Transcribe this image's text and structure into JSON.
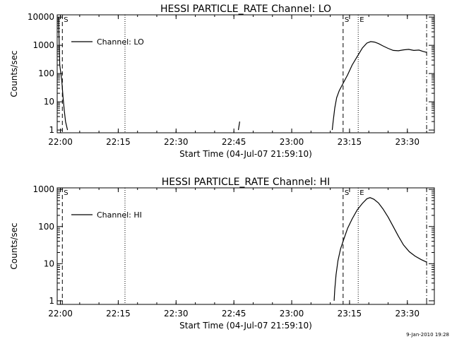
{
  "timestamp": "9-Jan-2010 19:28",
  "chart_data": [
    {
      "type": "line",
      "title": "HESSI PARTICLE_RATE Channel: LO",
      "xlabel": "Start Time (04-Jul-07 21:59:10)",
      "ylabel": "Counts/sec",
      "y_scale": "log",
      "xlim": [
        "21:59:10",
        "23:37:00"
      ],
      "ylim": [
        0.8,
        12000
      ],
      "x_ticks": [
        "22:00",
        "22:15",
        "22:30",
        "22:45",
        "23:00",
        "23:15",
        "23:30"
      ],
      "y_ticks": [
        "1",
        "10",
        "100",
        "1000",
        "10000"
      ],
      "legend": {
        "position": "top-left",
        "entries": [
          "Channel: LO"
        ]
      },
      "markers": [
        {
          "label": "S",
          "time": "22:00:30",
          "style": "dashed"
        },
        {
          "label": "",
          "time": "22:16:45",
          "style": "dotted"
        },
        {
          "label": "S",
          "time": "23:13:20",
          "style": "dashed"
        },
        {
          "label": "E",
          "time": "23:17:15",
          "style": "dotted"
        },
        {
          "label": "",
          "time": "23:35:00",
          "style": "dashdot"
        }
      ],
      "series": [
        {
          "name": "Channel: LO",
          "segments": [
            [
              [
                "21:59:30",
                10000
              ],
              [
                "21:59:50",
                200
              ],
              [
                "22:00:20",
                60
              ],
              [
                "22:00:40",
                15
              ],
              [
                "22:01:00",
                5
              ],
              [
                "22:01:20",
                2
              ],
              [
                "22:01:50",
                1
              ]
            ],
            [
              [
                "22:46:10",
                1
              ],
              [
                "22:46:30",
                2
              ]
            ],
            [
              [
                "23:10:30",
                1
              ],
              [
                "23:10:45",
                2
              ],
              [
                "23:11:10",
                6
              ],
              [
                "23:11:40",
                14
              ],
              [
                "23:12:20",
                25
              ],
              [
                "23:13:20",
                45
              ],
              [
                "23:14:30",
                90
              ],
              [
                "23:15:40",
                200
              ],
              [
                "23:17:00",
                400
              ],
              [
                "23:18:20",
                800
              ],
              [
                "23:19:30",
                1200
              ],
              [
                "23:20:30",
                1350
              ],
              [
                "23:21:30",
                1300
              ],
              [
                "23:22:30",
                1150
              ],
              [
                "23:23:40",
                950
              ],
              [
                "23:25:00",
                780
              ],
              [
                "23:26:20",
                660
              ],
              [
                "23:27:40",
                640
              ],
              [
                "23:29:00",
                690
              ],
              [
                "23:30:20",
                720
              ],
              [
                "23:31:40",
                660
              ],
              [
                "23:33:00",
                680
              ],
              [
                "23:34:00",
                610
              ],
              [
                "23:35:00",
                560
              ]
            ]
          ]
        }
      ]
    },
    {
      "type": "line",
      "title": "HESSI PARTICLE_RATE Channel: HI",
      "xlabel": "Start Time (04-Jul-07 21:59:10)",
      "ylabel": "Counts/sec",
      "y_scale": "log",
      "xlim": [
        "21:59:10",
        "23:37:00"
      ],
      "ylim": [
        0.8,
        1100
      ],
      "x_ticks": [
        "22:00",
        "22:15",
        "22:30",
        "22:45",
        "23:00",
        "23:15",
        "23:30"
      ],
      "y_ticks": [
        "1",
        "10",
        "100",
        "1000"
      ],
      "legend": {
        "position": "top-left",
        "entries": [
          "Channel: HI"
        ]
      },
      "markers": [
        {
          "label": "S",
          "time": "22:00:30",
          "style": "dashed"
        },
        {
          "label": "",
          "time": "22:16:45",
          "style": "dotted"
        },
        {
          "label": "S",
          "time": "23:13:20",
          "style": "dashed"
        },
        {
          "label": "E",
          "time": "23:17:15",
          "style": "dotted"
        },
        {
          "label": "",
          "time": "23:35:00",
          "style": "dashdot"
        }
      ],
      "series": [
        {
          "name": "Channel: HI",
          "segments": [
            [
              [
                "23:11:00",
                1
              ],
              [
                "23:11:10",
                2
              ],
              [
                "23:11:30",
                5
              ],
              [
                "23:12:00",
                12
              ],
              [
                "23:12:40",
                25
              ],
              [
                "23:13:30",
                45
              ],
              [
                "23:14:30",
                90
              ],
              [
                "23:15:40",
                160
              ],
              [
                "23:17:00",
                280
              ],
              [
                "23:18:20",
                420
              ],
              [
                "23:19:30",
                560
              ],
              [
                "23:20:20",
                600
              ],
              [
                "23:21:20",
                540
              ],
              [
                "23:22:30",
                430
              ],
              [
                "23:23:40",
                300
              ],
              [
                "23:25:00",
                180
              ],
              [
                "23:26:20",
                100
              ],
              [
                "23:27:40",
                55
              ],
              [
                "23:29:00",
                32
              ],
              [
                "23:30:30",
                21
              ],
              [
                "23:32:00",
                16
              ],
              [
                "23:33:30",
                13
              ],
              [
                "23:35:00",
                11
              ]
            ]
          ]
        }
      ]
    }
  ]
}
